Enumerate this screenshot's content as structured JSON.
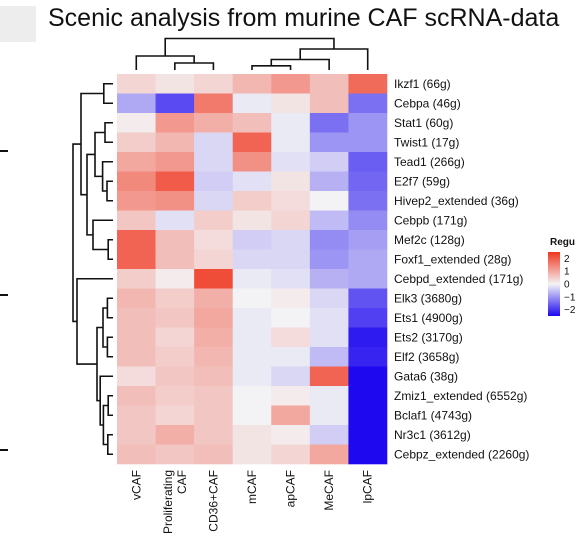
{
  "chart_data": {
    "type": "heatmap",
    "title": "Scenic analysis from murine CAF scRNA-data",
    "columns": [
      "vCAF",
      "Proliferating CAF",
      "CD36+CAF",
      "mCAF",
      "apCAF",
      "MeCAF",
      "lpCAF"
    ],
    "rows": [
      "Ikzf1 (66g)",
      "Cebpa (46g)",
      "Stat1 (60g)",
      "Twist1 (17g)",
      "Tead1 (266g)",
      "E2f7 (59g)",
      "Hivep2_extended (36g)",
      "Cebpb (171g)",
      "Mef2c (128g)",
      "Foxf1_extended (28g)",
      "Cebpd_extended (171g)",
      "Elk3 (3680g)",
      "Ets1 (4900g)",
      "Ets2 (3170g)",
      "Elf2 (3658g)",
      "Gata6 (38g)",
      "Zmiz1_extended (6552g)",
      "Bclaf1 (4743g)",
      "Nr3c1 (3612g)",
      "Cebpz_extended (2260g)"
    ],
    "values": [
      [
        0.4,
        0.2,
        0.4,
        0.8,
        1.2,
        0.7,
        1.8
      ],
      [
        -0.8,
        -1.8,
        1.6,
        -0.1,
        0.2,
        0.7,
        -1.4
      ],
      [
        0.1,
        1.2,
        0.9,
        0.7,
        -0.1,
        -1.4,
        -1.0
      ],
      [
        0.5,
        0.8,
        -0.3,
        1.9,
        -0.1,
        -1.0,
        -1.0
      ],
      [
        1.0,
        1.2,
        -0.3,
        1.3,
        -0.2,
        -0.4,
        -1.6
      ],
      [
        1.4,
        2.0,
        -0.4,
        -0.2,
        0.2,
        -0.7,
        -1.5
      ],
      [
        1.2,
        1.3,
        -0.3,
        0.5,
        0.3,
        0.0,
        -1.4
      ],
      [
        0.6,
        -0.2,
        0.5,
        0.2,
        0.4,
        -0.6,
        -1.1
      ],
      [
        1.9,
        0.7,
        0.3,
        -0.4,
        -0.3,
        -1.1,
        -0.9
      ],
      [
        1.9,
        0.7,
        0.4,
        -0.3,
        -0.3,
        -1.0,
        -0.8
      ],
      [
        0.5,
        0.1,
        2.2,
        -0.1,
        -0.2,
        -0.7,
        -0.8
      ],
      [
        0.8,
        0.5,
        0.9,
        0.0,
        0.1,
        -0.3,
        -1.7
      ],
      [
        0.7,
        0.6,
        1.0,
        -0.1,
        0.0,
        -0.2,
        -1.9
      ],
      [
        0.7,
        0.4,
        0.9,
        -0.1,
        0.3,
        -0.2,
        -2.3
      ],
      [
        0.7,
        0.5,
        0.8,
        -0.1,
        -0.1,
        -0.6,
        -2.2
      ],
      [
        0.3,
        0.6,
        0.7,
        -0.1,
        -0.3,
        1.9,
        -2.5
      ],
      [
        0.7,
        0.5,
        0.6,
        0.0,
        0.1,
        -0.1,
        -2.5
      ],
      [
        0.6,
        0.4,
        0.6,
        0.0,
        1.0,
        -0.1,
        -2.5
      ],
      [
        0.6,
        0.9,
        0.6,
        0.2,
        0.1,
        -0.4,
        -2.5
      ],
      [
        0.7,
        0.6,
        0.7,
        0.2,
        0.4,
        1.0,
        -2.6
      ]
    ],
    "legend": {
      "title": "Regu",
      "ticks": [
        2,
        1,
        0,
        -1,
        -2
      ],
      "tick_labels": [
        "2",
        "1",
        "0",
        "−1",
        "−2"
      ],
      "placement": "right"
    },
    "colors": {
      "high": "#f0361f",
      "mid": "#f3f3f5",
      "low": "#1d08f0"
    },
    "range": [
      -2.5,
      2.5
    ]
  }
}
